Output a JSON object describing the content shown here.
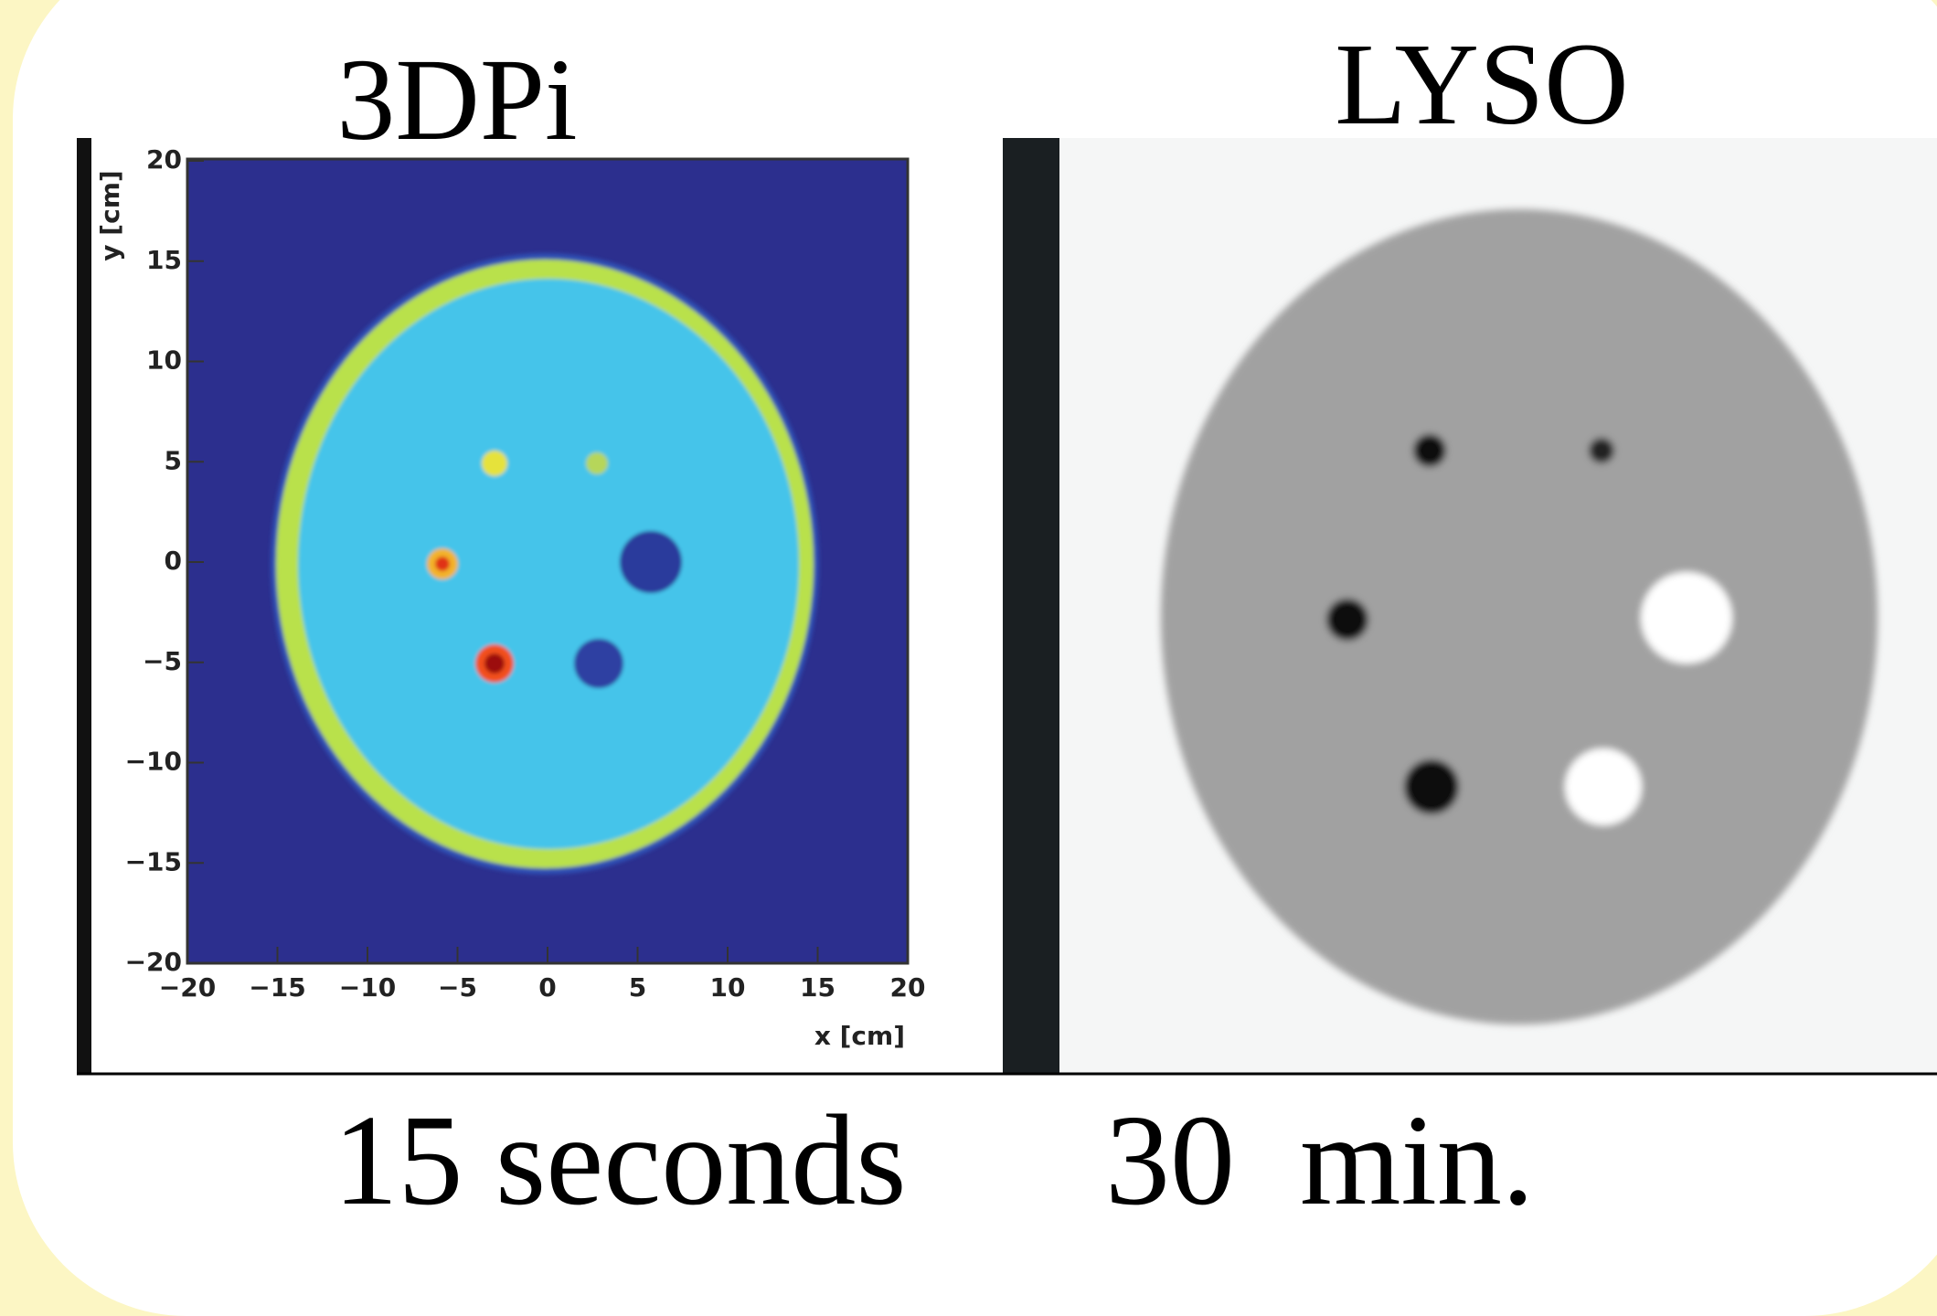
{
  "left_panel": {
    "title": "3DPi",
    "caption": "15 seconds",
    "x_label": "x [cm]",
    "y_label": "y [cm]",
    "xticks": [
      "−20",
      "−15",
      "−10",
      "−5",
      "0",
      "5",
      "10",
      "15",
      "20"
    ],
    "yticks": [
      "20",
      "15",
      "10",
      "5",
      "0",
      "−5",
      "−10",
      "−15",
      "−20"
    ]
  },
  "right_panel": {
    "title": "LYSO",
    "caption": "30  min."
  }
}
